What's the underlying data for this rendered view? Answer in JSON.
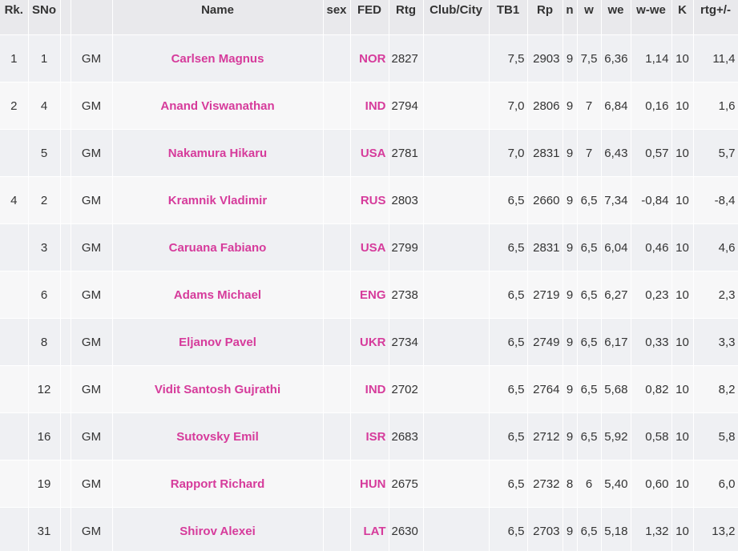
{
  "table": {
    "header": [
      "Rk.",
      "SNo",
      null,
      null,
      "Name",
      "sex",
      "FED",
      "Rtg",
      "Club/City",
      "TB1",
      "Rp",
      "n",
      "w",
      "we",
      "w-we",
      "K",
      "rtg+/-"
    ],
    "rows": [
      [
        "1",
        "1",
        null,
        "GM",
        "Carlsen Magnus",
        null,
        "NOR",
        "2827",
        null,
        "7,5",
        "2903",
        "9",
        "7,5",
        "6,36",
        "1,14",
        "10",
        "11,4"
      ],
      [
        "2",
        "4",
        null,
        "GM",
        "Anand Viswanathan",
        null,
        "IND",
        "2794",
        null,
        "7,0",
        "2806",
        "9",
        "7",
        "6,84",
        "0,16",
        "10",
        "1,6"
      ],
      [
        null,
        "5",
        null,
        "GM",
        "Nakamura Hikaru",
        null,
        "USA",
        "2781",
        null,
        "7,0",
        "2831",
        "9",
        "7",
        "6,43",
        "0,57",
        "10",
        "5,7"
      ],
      [
        "4",
        "2",
        null,
        "GM",
        "Kramnik Vladimir",
        null,
        "RUS",
        "2803",
        null,
        "6,5",
        "2660",
        "9",
        "6,5",
        "7,34",
        "-0,84",
        "10",
        "-8,4"
      ],
      [
        null,
        "3",
        null,
        "GM",
        "Caruana Fabiano",
        null,
        "USA",
        "2799",
        null,
        "6,5",
        "2831",
        "9",
        "6,5",
        "6,04",
        "0,46",
        "10",
        "4,6"
      ],
      [
        null,
        "6",
        null,
        "GM",
        "Adams Michael",
        null,
        "ENG",
        "2738",
        null,
        "6,5",
        "2719",
        "9",
        "6,5",
        "6,27",
        "0,23",
        "10",
        "2,3"
      ],
      [
        null,
        "8",
        null,
        "GM",
        "Eljanov Pavel",
        null,
        "UKR",
        "2734",
        null,
        "6,5",
        "2749",
        "9",
        "6,5",
        "6,17",
        "0,33",
        "10",
        "3,3"
      ],
      [
        null,
        "12",
        null,
        "GM",
        "Vidit Santosh Gujrathi",
        null,
        "IND",
        "2702",
        null,
        "6,5",
        "2764",
        "9",
        "6,5",
        "5,68",
        "0,82",
        "10",
        "8,2"
      ],
      [
        null,
        "16",
        null,
        "GM",
        "Sutovsky Emil",
        null,
        "ISR",
        "2683",
        null,
        "6,5",
        "2712",
        "9",
        "6,5",
        "5,92",
        "0,58",
        "10",
        "5,8"
      ],
      [
        null,
        "19",
        null,
        "GM",
        "Rapport Richard",
        null,
        "HUN",
        "2675",
        null,
        "6,5",
        "2732",
        "8",
        "6",
        "5,40",
        "0,60",
        "10",
        "6,0"
      ],
      [
        null,
        "31",
        null,
        "GM",
        "Shirov Alexei",
        null,
        "LAT",
        "2630",
        null,
        "6,5",
        "2703",
        "9",
        "6,5",
        "5,18",
        "1,32",
        "10",
        "13,2"
      ]
    ]
  }
}
